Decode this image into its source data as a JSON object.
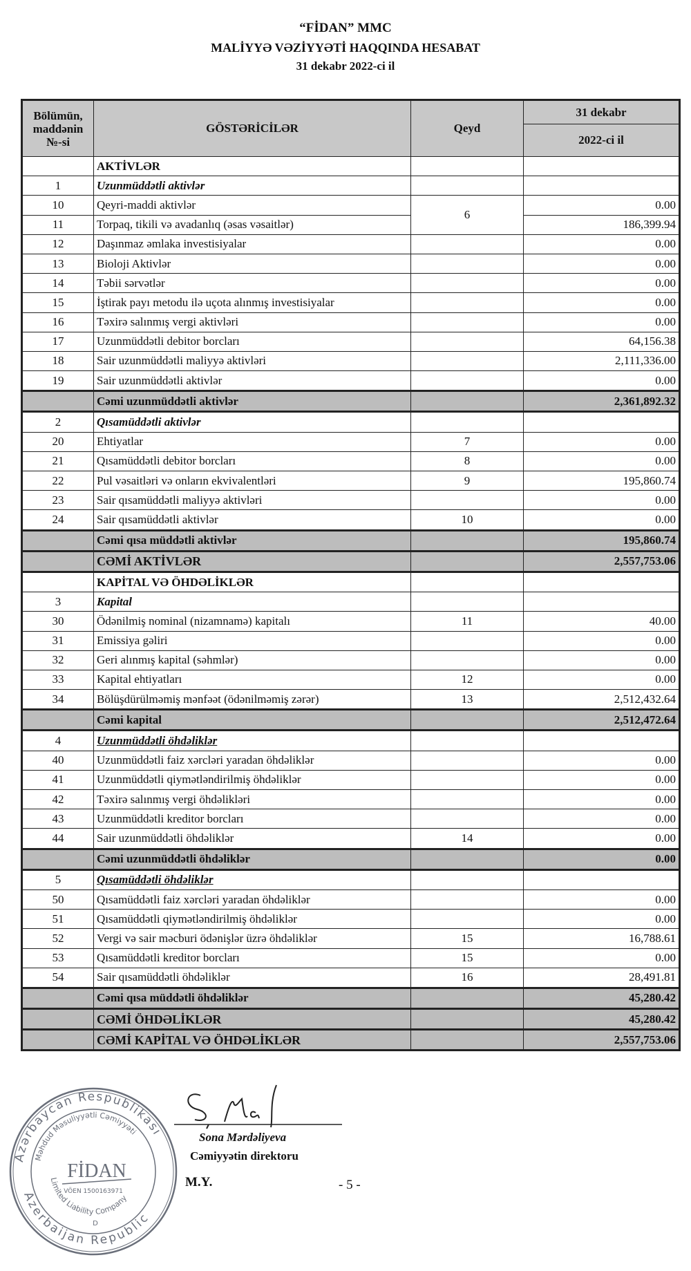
{
  "header": {
    "company": "“FİDAN” MMC",
    "title": "MALİYYƏ VƏZİYYƏTİ HAQQINDA HESABAT",
    "date": "31 dekabr 2022-ci il"
  },
  "table": {
    "col_no": "Bölümün, maddənin №-si",
    "col_no_lines": [
      "Bölümün,",
      "maddənin",
      "№-si"
    ],
    "col_label": "GÖSTƏRİCİLƏR",
    "col_note": "Qeyd",
    "col_period_top": "31 dekabr",
    "col_period_bottom": "2022-ci il",
    "rows": [
      {
        "no": "",
        "label": "AKTİVLƏR",
        "note": "",
        "value": "",
        "type": "heading"
      },
      {
        "no": "1",
        "label": "Uzunmüddətli aktivlər",
        "note": "",
        "value": "",
        "type": "section"
      },
      {
        "no": "10",
        "label": "Qeyri-maddi aktivlər",
        "note": "6",
        "value": "0.00",
        "type": "item"
      },
      {
        "no": "11",
        "label": "Torpaq, tikili və avadanlıq (əsas vəsaitlər)",
        "note": "6",
        "value": "186,399.94",
        "type": "item",
        "note_merged": true
      },
      {
        "no": "12",
        "label": "Daşınmaz əmlaka investisiyalar",
        "note": "",
        "value": "0.00",
        "type": "item"
      },
      {
        "no": "13",
        "label": "Bioloji Aktivlər",
        "note": "",
        "value": "0.00",
        "type": "item"
      },
      {
        "no": "14",
        "label": "Təbii sərvətlər",
        "note": "",
        "value": "0.00",
        "type": "item"
      },
      {
        "no": "15",
        "label": "İştirak payı metodu ilə uçota alınmış investisiyalar",
        "note": "",
        "value": "0.00",
        "type": "item"
      },
      {
        "no": "16",
        "label": "Təxirə salınmış vergi aktivləri",
        "note": "",
        "value": "0.00",
        "type": "item"
      },
      {
        "no": "17",
        "label": "Uzunmüddətli debitor borcları",
        "note": "",
        "value": "64,156.38",
        "type": "item"
      },
      {
        "no": "18",
        "label": "Sair uzunmüddətli maliyyə aktivləri",
        "note": "",
        "value": "2,111,336.00",
        "type": "item"
      },
      {
        "no": "19",
        "label": "Sair uzunmüddətli aktivlər",
        "note": "",
        "value": "0.00",
        "type": "item"
      },
      {
        "no": "",
        "label": "Cəmi uzunmüddətli aktivlər",
        "note": "",
        "value": "2,361,892.32",
        "type": "total"
      },
      {
        "no": "2",
        "label": "Qısamüddətli aktivlər",
        "note": "",
        "value": "",
        "type": "section"
      },
      {
        "no": "20",
        "label": "Ehtiyatlar",
        "note": "7",
        "value": "0.00",
        "type": "item"
      },
      {
        "no": "21",
        "label": "Qısamüddətli debitor borcları",
        "note": "8",
        "value": "0.00",
        "type": "item"
      },
      {
        "no": "22",
        "label": "Pul vəsaitləri və onların ekvivalentləri",
        "note": "9",
        "value": "195,860.74",
        "type": "item"
      },
      {
        "no": "23",
        "label": "Sair qısamüddətli maliyyə aktivləri",
        "note": "",
        "value": "0.00",
        "type": "item"
      },
      {
        "no": "24",
        "label": "Sair qısamüddətli aktivlər",
        "note": "10",
        "value": "0.00",
        "type": "item"
      },
      {
        "no": "",
        "label": "Cəmi qısa müddətli aktivlər",
        "note": "",
        "value": "195,860.74",
        "type": "total"
      },
      {
        "no": "",
        "label": "CƏMİ AKTİVLƏR",
        "note": "",
        "value": "2,557,753.06",
        "type": "bigtotal"
      },
      {
        "no": "",
        "label": "KAPİTAL VƏ ÖHDƏLİKLƏR",
        "note": "",
        "value": "",
        "type": "heading"
      },
      {
        "no": "3",
        "label": "Kapital",
        "note": "",
        "value": "",
        "type": "section"
      },
      {
        "no": "30",
        "label": "Ödənilmiş nominal (nizamnamə) kapitalı",
        "note": "11",
        "value": "40.00",
        "type": "item"
      },
      {
        "no": "31",
        "label": "Emissiya gəliri",
        "note": "",
        "value": "0.00",
        "type": "item"
      },
      {
        "no": "32",
        "label": "Geri alınmış kapital (səhmlər)",
        "note": "",
        "value": "0.00",
        "type": "item"
      },
      {
        "no": "33",
        "label": "Kapital ehtiyatları",
        "note": "12",
        "value": "0.00",
        "type": "item"
      },
      {
        "no": "34",
        "label": "Bölüşdürülməmiş mənfəət (ödənilməmiş zərər)",
        "note": "13",
        "value": "2,512,432.64",
        "type": "item"
      },
      {
        "no": "",
        "label": "Cəmi kapital",
        "note": "",
        "value": "2,512,472.64",
        "type": "total"
      },
      {
        "no": "4",
        "label": "Uzunmüddətli öhdəliklər",
        "note": "",
        "value": "",
        "type": "section-ul"
      },
      {
        "no": "40",
        "label": "Uzunmüddətli faiz xərcləri yaradan öhdəliklər",
        "note": "",
        "value": "0.00",
        "type": "item"
      },
      {
        "no": "41",
        "label": "Uzunmüddətli qiymətləndirilmiş öhdəliklər",
        "note": "",
        "value": "0.00",
        "type": "item"
      },
      {
        "no": "42",
        "label": "Təxirə salınmış vergi öhdəlikləri",
        "note": "",
        "value": "0.00",
        "type": "item"
      },
      {
        "no": "43",
        "label": "Uzunmüddətli kreditor borcları",
        "note": "",
        "value": "0.00",
        "type": "item"
      },
      {
        "no": "44",
        "label": "Sair uzunmüddətli öhdəliklər",
        "note": "14",
        "value": "0.00",
        "type": "item"
      },
      {
        "no": "",
        "label": "Cəmi uzunmüddətli öhdəliklər",
        "note": "",
        "value": "0.00",
        "type": "total"
      },
      {
        "no": "5",
        "label": "Qısamüddətli öhdəliklər",
        "note": "",
        "value": "",
        "type": "section-ul"
      },
      {
        "no": "50",
        "label": "Qısamüddətli faiz xərcləri yaradan öhdəliklər",
        "note": "",
        "value": "0.00",
        "type": "item"
      },
      {
        "no": "51",
        "label": "Qısamüddətli qiymətləndirilmiş öhdəliklər",
        "note": "",
        "value": "0.00",
        "type": "item"
      },
      {
        "no": "52",
        "label": "Vergi və sair məcburi ödənişlər üzrə öhdəliklər",
        "note": "15",
        "value": "16,788.61",
        "type": "item"
      },
      {
        "no": "53",
        "label": "Qısamüddətli kreditor borcları",
        "note": "15",
        "value": "0.00",
        "type": "item"
      },
      {
        "no": "54",
        "label": "Sair qısamüddətli öhdəliklər",
        "note": "16",
        "value": "28,491.81",
        "type": "item"
      },
      {
        "no": "",
        "label": "Cəmi qısa müddətli öhdəliklər",
        "note": "",
        "value": "45,280.42",
        "type": "total"
      },
      {
        "no": "",
        "label": "CƏMİ ÖHDƏLİKLƏR",
        "note": "",
        "value": "45,280.42",
        "type": "bigtotal"
      },
      {
        "no": "",
        "label": "CƏMİ KAPİTAL VƏ ÖHDƏLİKLƏR",
        "note": "",
        "value": "2,557,753.06",
        "type": "bigtotal"
      }
    ]
  },
  "footer": {
    "signature_name": "Sona Mərdəliyeva",
    "signature_role": "Cəmiyyətin direktoru",
    "seal_label": "M.Y.",
    "page_number": "- 5 -",
    "stamp": {
      "outer_top": "Azərbaycan Respublikası",
      "outer_bottom": "Azerbaijan Republic",
      "inner_top": "Məhdud Məsuliyyətli Cəmiyyəti",
      "inner_bottom": "Limited Liability Company",
      "name": "FİDAN",
      "voen": "VÖEN 1500163971",
      "letter": "D"
    },
    "colors": {
      "shading": "#bdbdbd",
      "stamp": "#6a6f7a"
    }
  }
}
